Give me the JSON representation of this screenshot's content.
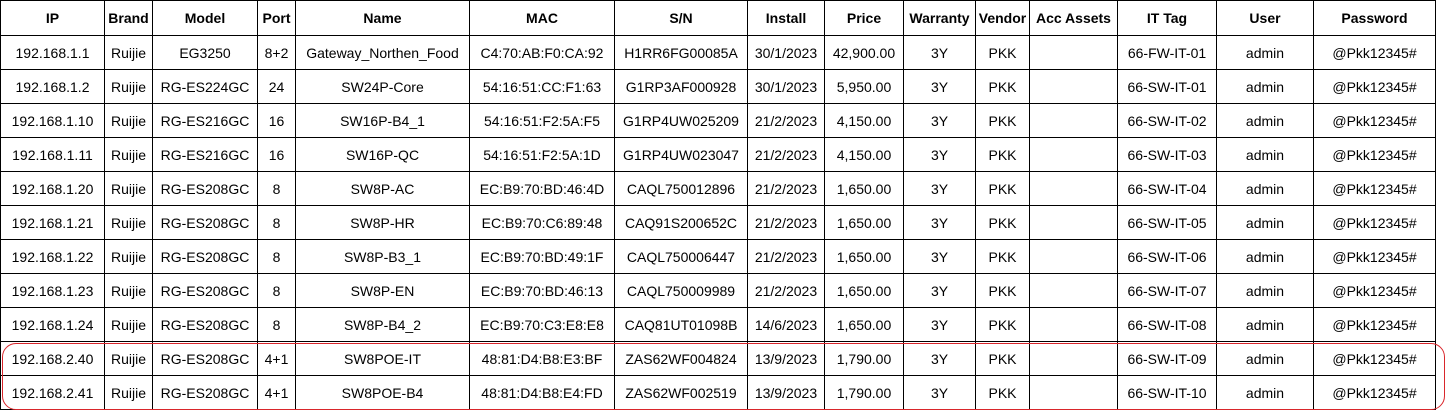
{
  "headers": [
    "IP",
    "Brand",
    "Model",
    "Port",
    "Name",
    "MAC",
    "S/N",
    "Install",
    "Price",
    "Warranty",
    "Vendor",
    "Acc Assets",
    "IT Tag",
    "User",
    "Password"
  ],
  "rows": [
    [
      "192.168.1.1",
      "Ruijie",
      "EG3250",
      "8+2",
      "Gateway_Northen_Food",
      "C4:70:AB:F0:CA:92",
      "H1RR6FG00085A",
      "30/1/2023",
      "42,900.00",
      "3Y",
      "PKK",
      "",
      "66-FW-IT-01",
      "admin",
      "@Pkk12345#"
    ],
    [
      "192.168.1.2",
      "Ruijie",
      "RG-ES224GC",
      "24",
      "SW24P-Core",
      "54:16:51:CC:F1:63",
      "G1RP3AF000928",
      "30/1/2023",
      "5,950.00",
      "3Y",
      "PKK",
      "",
      "66-SW-IT-01",
      "admin",
      "@Pkk12345#"
    ],
    [
      "192.168.1.10",
      "Ruijie",
      "RG-ES216GC",
      "16",
      "SW16P-B4_1",
      "54:16:51:F2:5A:F5",
      "G1RP4UW025209",
      "21/2/2023",
      "4,150.00",
      "3Y",
      "PKK",
      "",
      "66-SW-IT-02",
      "admin",
      "@Pkk12345#"
    ],
    [
      "192.168.1.11",
      "Ruijie",
      "RG-ES216GC",
      "16",
      "SW16P-QC",
      "54:16:51:F2:5A:1D",
      "G1RP4UW023047",
      "21/2/2023",
      "4,150.00",
      "3Y",
      "PKK",
      "",
      "66-SW-IT-03",
      "admin",
      "@Pkk12345#"
    ],
    [
      "192.168.1.20",
      "Ruijie",
      "RG-ES208GC",
      "8",
      "SW8P-AC",
      "EC:B9:70:BD:46:4D",
      "CAQL750012896",
      "21/2/2023",
      "1,650.00",
      "3Y",
      "PKK",
      "",
      "66-SW-IT-04",
      "admin",
      "@Pkk12345#"
    ],
    [
      "192.168.1.21",
      "Ruijie",
      "RG-ES208GC",
      "8",
      "SW8P-HR",
      "EC:B9:70:C6:89:48",
      "CAQ91S200652C",
      "21/2/2023",
      "1,650.00",
      "3Y",
      "PKK",
      "",
      "66-SW-IT-05",
      "admin",
      "@Pkk12345#"
    ],
    [
      "192.168.1.22",
      "Ruijie",
      "RG-ES208GC",
      "8",
      "SW8P-B3_1",
      "EC:B9:70:BD:49:1F",
      "CAQL750006447",
      "21/2/2023",
      "1,650.00",
      "3Y",
      "PKK",
      "",
      "66-SW-IT-06",
      "admin",
      "@Pkk12345#"
    ],
    [
      "192.168.1.23",
      "Ruijie",
      "RG-ES208GC",
      "8",
      "SW8P-EN",
      "EC:B9:70:BD:46:13",
      "CAQL750009989",
      "21/2/2023",
      "1,650.00",
      "3Y",
      "PKK",
      "",
      "66-SW-IT-07",
      "admin",
      "@Pkk12345#"
    ],
    [
      "192.168.1.24",
      "Ruijie",
      "RG-ES208GC",
      "8",
      "SW8P-B4_2",
      "EC:B9:70:C3:E8:E8",
      "CAQ81UT01098B",
      "14/6/2023",
      "1,650.00",
      "3Y",
      "PKK",
      "",
      "66-SW-IT-08",
      "admin",
      "@Pkk12345#"
    ],
    [
      "192.168.2.40",
      "Ruijie",
      "RG-ES208GC",
      "4+1",
      "SW8POE-IT",
      "48:81:D4:B8:E3:BF",
      "ZAS62WF004824",
      "13/9/2023",
      "1,790.00",
      "3Y",
      "PKK",
      "",
      "66-SW-IT-09",
      "admin",
      "@Pkk12345#"
    ],
    [
      "192.168.2.41",
      "Ruijie",
      "RG-ES208GC",
      "4+1",
      "SW8POE-B4",
      "48:81:D4:B8:E4:FD",
      "ZAS62WF002519",
      "13/9/2023",
      "1,790.00",
      "3Y",
      "PKK",
      "",
      "66-SW-IT-10",
      "admin",
      "@Pkk12345#"
    ]
  ],
  "colors": {
    "highlight_border": "#d9262b",
    "grid": "#000000",
    "background": "#ffffff"
  }
}
